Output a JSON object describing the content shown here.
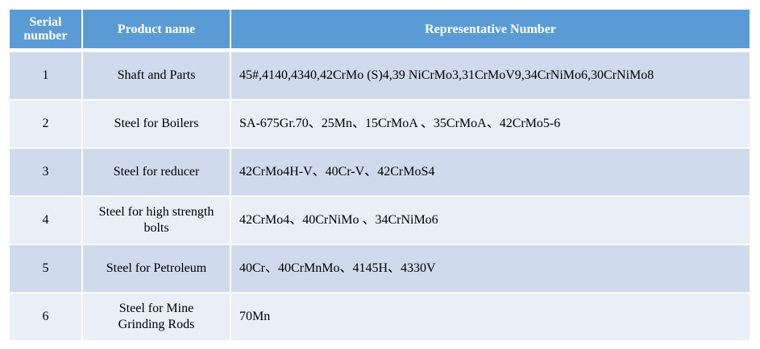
{
  "table": {
    "headers": [
      "Serial\nnumber",
      "Product name",
      "Representative Number"
    ],
    "header_color": "#5b9bd5",
    "rows": [
      {
        "serial": "1",
        "product": "Shaft and Parts",
        "numbers": "45#,4140,4340,42CrMo (S)4,39 NiCrMo3,31CrMoV9,34CrNiMo6,30CrNiMo8"
      },
      {
        "serial": "2",
        "product": "Steel for Boilers",
        "numbers": "SA-675Gr.70、25Mn、15CrMoA 、35CrMoA、42CrMo5-6"
      },
      {
        "serial": "3",
        "product": "Steel for reducer",
        "numbers": "42CrMo4H-V、40Cr-V、42CrMoS4"
      },
      {
        "serial": "4",
        "product": "Steel for high strength bolts",
        "numbers": "42CrMo4、40CrNiMo 、34CrNiMo6"
      },
      {
        "serial": "5",
        "product": "Steel for Petroleum",
        "numbers": "40Cr、40CrMnMo、4145H、4330V"
      },
      {
        "serial": "6",
        "product": "Steel for Mine Grinding Rods",
        "numbers": "70Mn"
      }
    ]
  }
}
